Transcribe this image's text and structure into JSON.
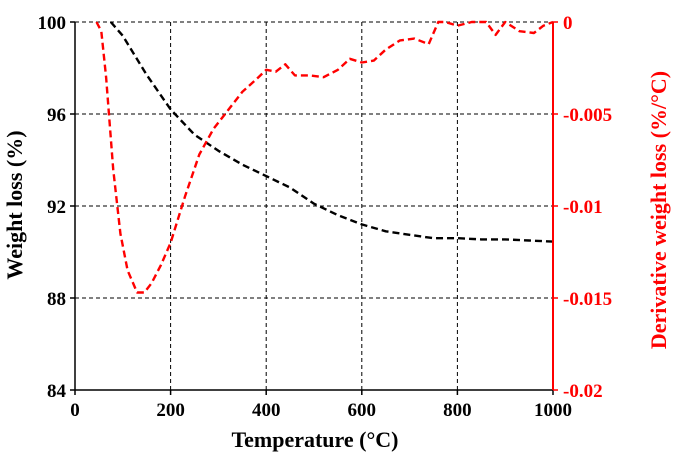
{
  "chart_data": {
    "type": "line",
    "xlabel": "Temperature (°C)",
    "ylabel_left": "Weight loss (%)",
    "ylabel_right": "Derivative weight loss (%/°C)",
    "xlim": [
      0,
      1000
    ],
    "ylim_left": [
      84,
      100
    ],
    "ylim_right": [
      -0.02,
      0
    ],
    "xticks": [
      0,
      200,
      400,
      600,
      800,
      1000
    ],
    "yticks_left": [
      84,
      88,
      92,
      96,
      100
    ],
    "yticks_right": [
      -0.02,
      -0.015,
      -0.01,
      -0.005,
      0
    ],
    "xtick_labels": [
      "0",
      "200",
      "400",
      "600",
      "800",
      "1000"
    ],
    "ytick_labels_left": [
      "84",
      "88",
      "92",
      "96",
      "100"
    ],
    "ytick_labels_right": [
      "-0.02",
      "-0.015",
      "-0.01",
      "-0.005",
      "0"
    ],
    "grid": true,
    "colors": {
      "left_axis": "#000000",
      "right_axis": "#ff0000"
    },
    "series": [
      {
        "axis": "left",
        "color": "#000000",
        "style": "dashed",
        "x": [
          75,
          100,
          150,
          200,
          250,
          300,
          350,
          400,
          450,
          500,
          550,
          600,
          650,
          700,
          750,
          800,
          850,
          900,
          950,
          1000
        ],
        "y": [
          100,
          99.4,
          97.7,
          96.2,
          95.1,
          94.4,
          93.8,
          93.3,
          92.8,
          92.1,
          91.6,
          91.2,
          90.9,
          90.75,
          90.6,
          90.6,
          90.55,
          90.55,
          90.5,
          90.45
        ]
      },
      {
        "axis": "right",
        "color": "#ff0000",
        "style": "dashed",
        "x": [
          45,
          55,
          65,
          80,
          95,
          110,
          130,
          145,
          160,
          180,
          200,
          230,
          260,
          290,
          320,
          350,
          380,
          400,
          420,
          440,
          460,
          490,
          520,
          550,
          575,
          600,
          625,
          650,
          680,
          710,
          740,
          760,
          775,
          800,
          830,
          860,
          880,
          900,
          930,
          960,
          980,
          1000
        ],
        "y": [
          0,
          -0.0005,
          -0.003,
          -0.008,
          -0.0115,
          -0.0135,
          -0.0147,
          -0.0147,
          -0.0142,
          -0.0132,
          -0.012,
          -0.0095,
          -0.0072,
          -0.0058,
          -0.0048,
          -0.0038,
          -0.0031,
          -0.0026,
          -0.0027,
          -0.0023,
          -0.0029,
          -0.0029,
          -0.003,
          -0.0026,
          -0.002,
          -0.0022,
          -0.0021,
          -0.0015,
          -0.001,
          -0.0009,
          -0.0012,
          0,
          0,
          -0.0002,
          0,
          0,
          -0.0007,
          0,
          -0.0005,
          -0.0006,
          -0.0002,
          0
        ]
      }
    ]
  }
}
